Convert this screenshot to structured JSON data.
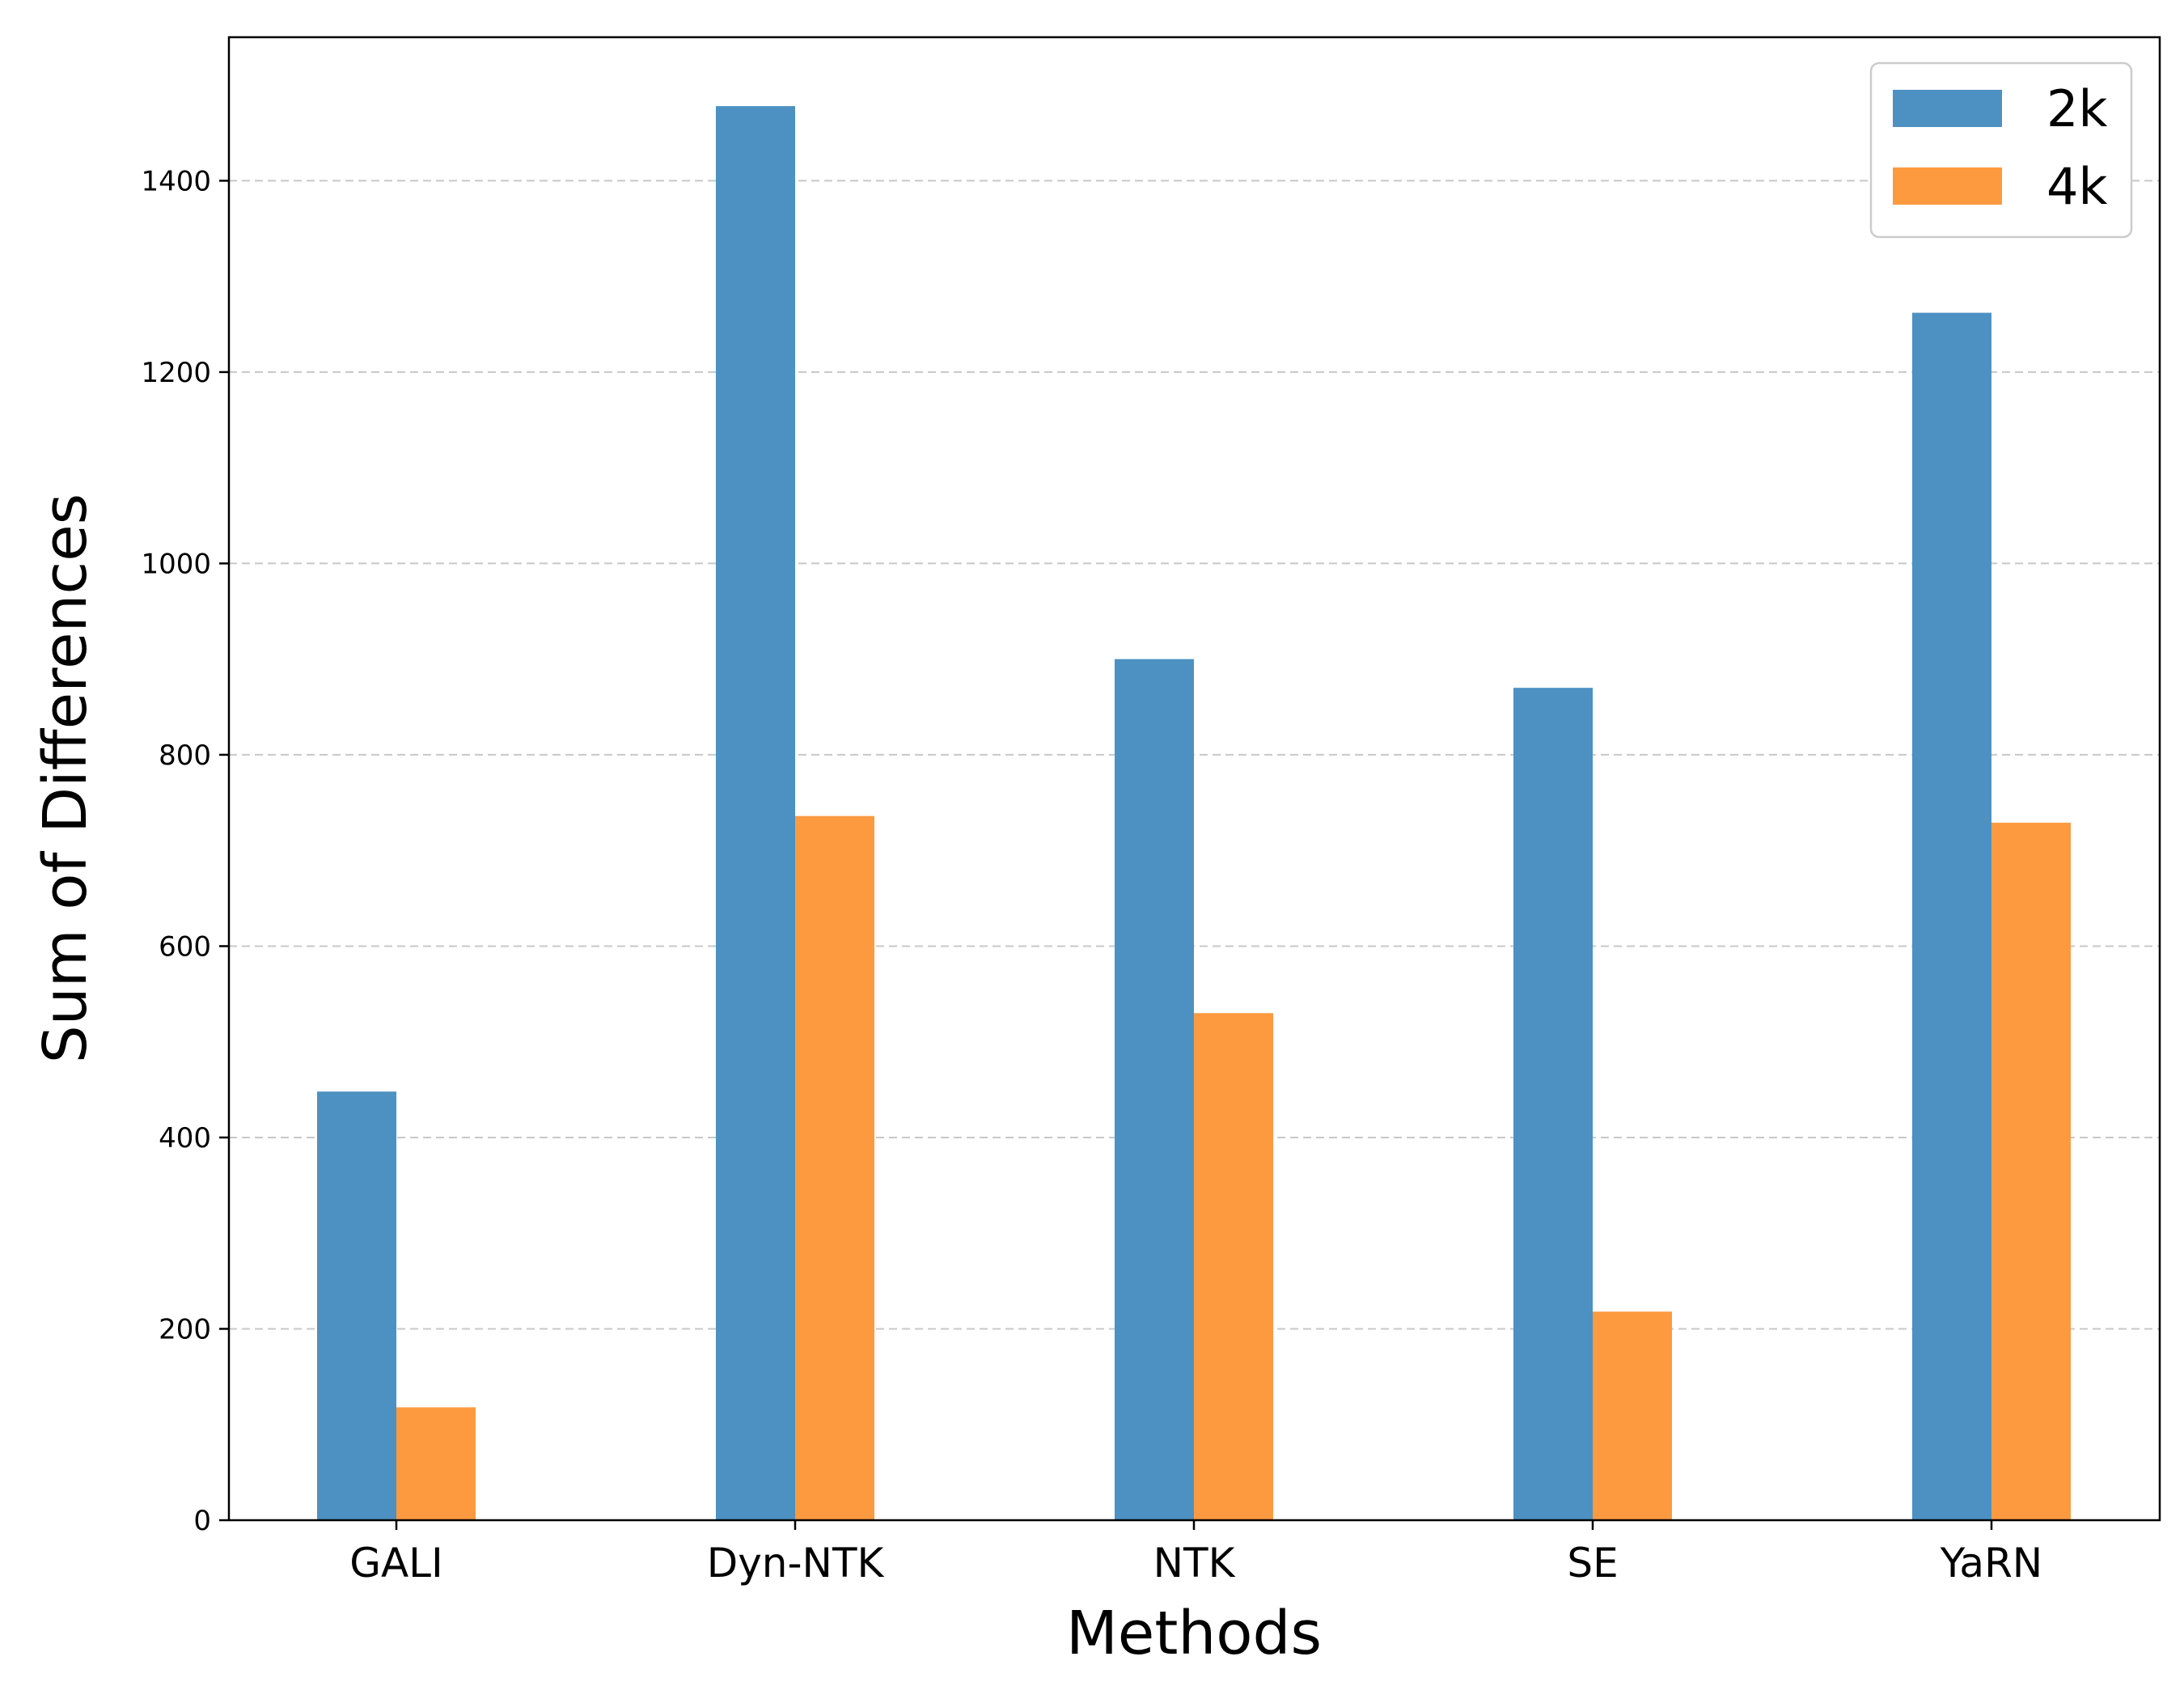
{
  "chart_data": {
    "type": "bar",
    "title": "",
    "xlabel": "Methods",
    "ylabel": "Sum of Differences",
    "categories": [
      "GALI",
      "Dyn-NTK",
      "NTK",
      "SE",
      "YaRN"
    ],
    "series": [
      {
        "name": "2k",
        "color": "#4c91c2",
        "values": [
          448,
          1478,
          900,
          870,
          1262
        ]
      },
      {
        "name": "4k",
        "color": "#fd9a40",
        "values": [
          118,
          736,
          530,
          218,
          729
        ]
      }
    ],
    "ylim": [
      0,
      1550
    ],
    "yticks": [
      0,
      200,
      400,
      600,
      800,
      1000,
      1200,
      1400
    ],
    "grid": "horizontal dashed",
    "legend_position": "top-right"
  }
}
